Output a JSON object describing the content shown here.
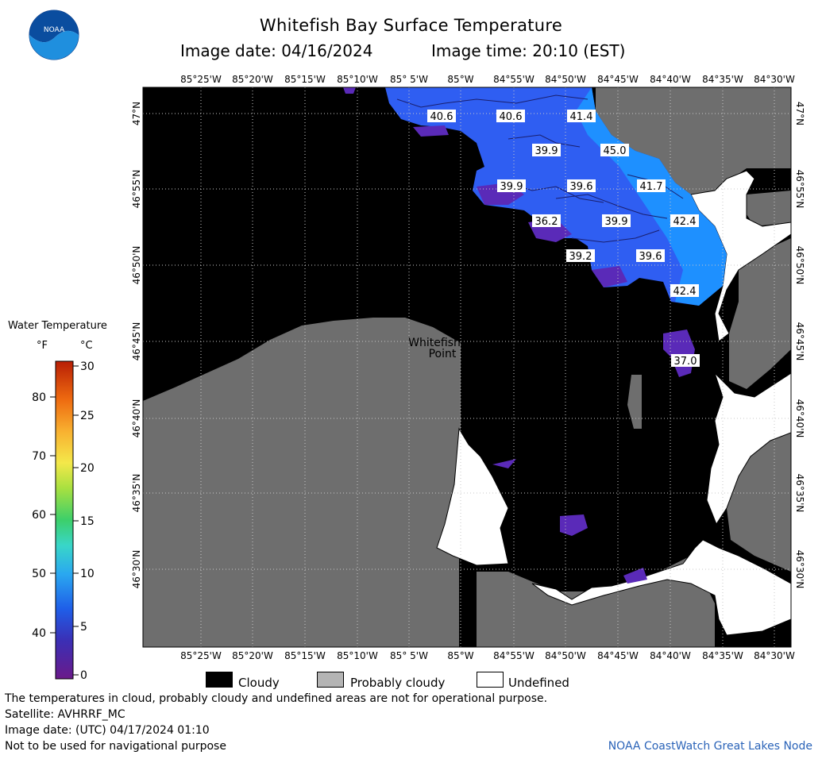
{
  "header": {
    "title": "Whitefish Bay Surface Temperature",
    "subtitle_date_label": "Image date: 04/16/2024",
    "subtitle_time_label": "Image time: 20:10 (EST)",
    "logo_text": "NOAA"
  },
  "axes": {
    "longitude_labels": [
      "85°25'W",
      "85°20'W",
      "85°15'W",
      "85°10'W",
      "85° 5'W",
      "85°W",
      "84°55'W",
      "84°50'W",
      "84°45'W",
      "84°40'W",
      "84°35'W",
      "84°30'W"
    ],
    "latitude_labels": [
      "47°N",
      "46°55'N",
      "46°50'N",
      "46°45'N",
      "46°40'N",
      "46°35'N",
      "46°30'N"
    ]
  },
  "place_label": [
    "Whitefish",
    "Point"
  ],
  "temperature_labels": [
    "40.6",
    "40.6",
    "41.4",
    "39.9",
    "45.0",
    "39.9",
    "39.6",
    "41.7",
    "36.2",
    "39.9",
    "42.4",
    "39.2",
    "39.6",
    "42.4",
    "37.0"
  ],
  "colorbar": {
    "title": "Water Temperature",
    "unit_f": "°F",
    "unit_c": "°C",
    "f_ticks": [
      "80",
      "70",
      "60",
      "50",
      "40"
    ],
    "c_ticks": [
      "30",
      "25",
      "20",
      "15",
      "10",
      "5",
      "0"
    ]
  },
  "legend": {
    "cloudy": "Cloudy",
    "probably_cloudy": "Probably cloudy",
    "undefined": "Undefined"
  },
  "colors": {
    "cloudy": "#000000",
    "probably_cloudy": "#6e6e6e",
    "undefined": "#ffffff",
    "water_blue": "#2f5ef2",
    "water_light": "#1e90ff",
    "water_purple": "#5a2ab8"
  },
  "footer": {
    "line1": "The temperatures in cloud, probably cloudy and undefined areas are not for operational purpose.",
    "line2": "Satellite: AVHRRF_MC",
    "line3": "Image date: (UTC) 04/17/2024  01:10",
    "line4": "Not to be used for navigational purpose",
    "credit": "NOAA CoastWatch Great Lakes Node"
  }
}
